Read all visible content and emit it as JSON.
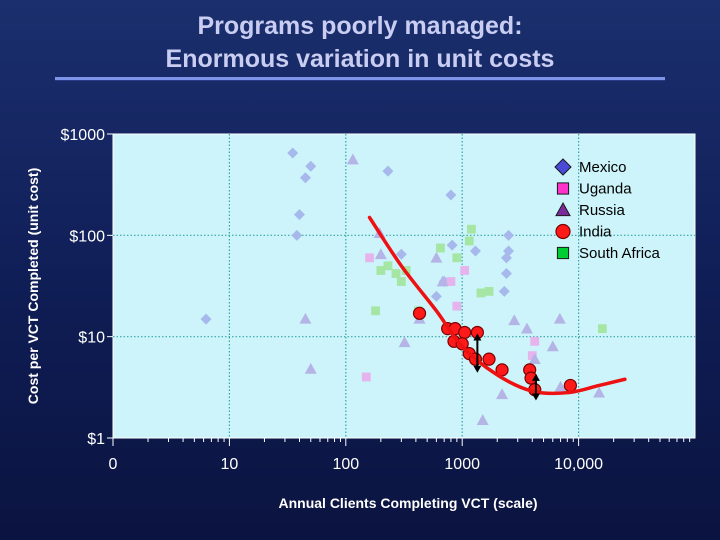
{
  "title_line1": "Programs poorly managed:",
  "title_line2": "Enormous variation in unit costs",
  "chart_data": {
    "type": "scatter",
    "xlabel": "Annual Clients Completing VCT (scale)",
    "ylabel": "Cost per VCT Completed (unit cost)",
    "x_scale": "log",
    "y_scale": "log",
    "xlim": [
      1,
      100000
    ],
    "ylim": [
      1,
      1000
    ],
    "x_ticks": [
      1,
      10,
      100,
      1000,
      10000
    ],
    "x_tick_labels": [
      "0",
      "10",
      "100",
      "1000",
      "10,000"
    ],
    "y_ticks": [
      1,
      10,
      100,
      1000
    ],
    "y_tick_labels": [
      "$1",
      "$10",
      "$100",
      "$1000"
    ],
    "legend_position": "top-right",
    "series": [
      {
        "name": "Mexico",
        "marker": "diamond",
        "color": "#4a4ad8",
        "faded_color": "#a7b9ec",
        "points": [
          [
            6.3,
            14.9
          ],
          [
            35,
            650
          ],
          [
            50,
            480
          ],
          [
            45,
            370
          ],
          [
            40,
            160
          ],
          [
            38,
            100
          ],
          [
            230,
            430
          ],
          [
            800,
            250
          ],
          [
            820,
            80
          ],
          [
            2500,
            100
          ],
          [
            2500,
            70
          ],
          [
            2400,
            60
          ],
          [
            2400,
            42
          ],
          [
            2300,
            28
          ],
          [
            300,
            65
          ],
          [
            600,
            25
          ],
          [
            700,
            35
          ],
          [
            1300,
            70
          ]
        ]
      },
      {
        "name": "Uganda",
        "marker": "square",
        "color": "#ff33cc",
        "faded_color": "#e6b3ec",
        "points": [
          [
            150,
            4
          ],
          [
            160,
            60
          ],
          [
            800,
            35
          ],
          [
            900,
            20
          ],
          [
            1050,
            45
          ],
          [
            4000,
            6.5
          ],
          [
            4200,
            9
          ]
        ]
      },
      {
        "name": "Russia",
        "marker": "triangle",
        "color": "#7a2a9c",
        "faded_color": "#b4b4e6",
        "points": [
          [
            45,
            15
          ],
          [
            50,
            4.8
          ],
          [
            115,
            560
          ],
          [
            195,
            105
          ],
          [
            200,
            65
          ],
          [
            320,
            8.8
          ],
          [
            430,
            15
          ],
          [
            600,
            60
          ],
          [
            680,
            35
          ],
          [
            1500,
            1.5
          ],
          [
            2800,
            14.5
          ],
          [
            3600,
            12
          ],
          [
            4200,
            6
          ],
          [
            6900,
            15
          ],
          [
            7000,
            3.2
          ],
          [
            15000,
            2.8
          ],
          [
            6000,
            8
          ],
          [
            2200,
            2.7
          ]
        ]
      },
      {
        "name": "India",
        "marker": "circle",
        "color": "#ff1a1a",
        "faded_color": "#ff1a1a",
        "points": [
          [
            430,
            17
          ],
          [
            750,
            12
          ],
          [
            870,
            12
          ],
          [
            850,
            9
          ],
          [
            1050,
            11
          ],
          [
            1000,
            8.5
          ],
          [
            1150,
            6.8
          ],
          [
            1350,
            11
          ],
          [
            1300,
            6
          ],
          [
            1700,
            6
          ],
          [
            2200,
            4.7
          ],
          [
            3800,
            4.7
          ],
          [
            3900,
            3.9
          ],
          [
            4200,
            3
          ],
          [
            8500,
            3.3
          ]
        ]
      },
      {
        "name": "South Africa",
        "marker": "square",
        "color": "#00cc33",
        "faded_color": "#a5e6a5",
        "points": [
          [
            180,
            18
          ],
          [
            200,
            45
          ],
          [
            230,
            50
          ],
          [
            270,
            42
          ],
          [
            300,
            35
          ],
          [
            330,
            45
          ],
          [
            420,
            18
          ],
          [
            650,
            75
          ],
          [
            900,
            60
          ],
          [
            1150,
            88
          ],
          [
            1200,
            115
          ],
          [
            1450,
            27
          ],
          [
            1700,
            28
          ],
          [
            16000,
            12
          ]
        ]
      }
    ],
    "trend_line": {
      "color": "#ee1111",
      "points": [
        [
          160,
          150
        ],
        [
          300,
          50
        ],
        [
          600,
          18
        ],
        [
          1000,
          8
        ],
        [
          2000,
          4.2
        ],
        [
          4000,
          2.9
        ],
        [
          8000,
          2.8
        ],
        [
          15000,
          3.3
        ],
        [
          25000,
          3.8
        ]
      ]
    },
    "ranges": [
      {
        "x": 1350,
        "low": 4.5,
        "high": 10.5
      },
      {
        "x": 4300,
        "low": 2.4,
        "high": 4.2
      }
    ]
  }
}
